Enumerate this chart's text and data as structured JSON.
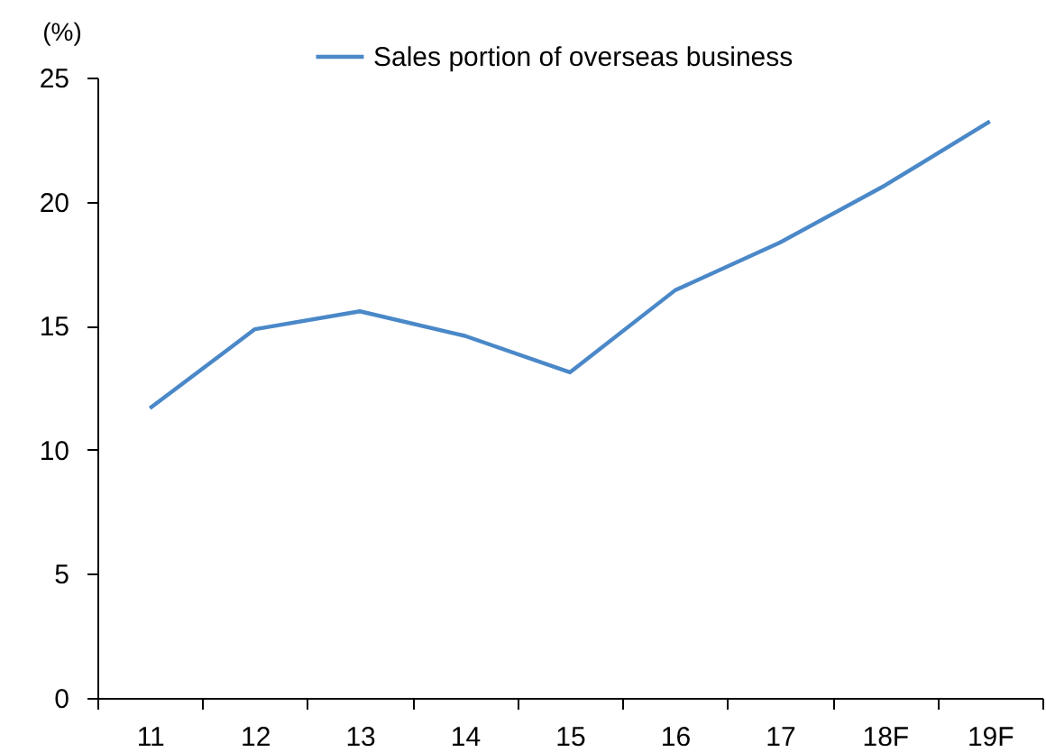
{
  "chart_data": {
    "type": "line",
    "ylabel": "(%)",
    "categories": [
      "11",
      "12",
      "13",
      "14",
      "15",
      "16",
      "17",
      "18F",
      "19F"
    ],
    "series": [
      {
        "name": "Sales portion of overseas business",
        "color": "#4a88c8",
        "values": [
          11.67,
          14.86,
          15.58,
          14.59,
          13.12,
          16.42,
          18.35,
          20.65,
          23.23
        ]
      }
    ],
    "ylim": [
      0,
      25
    ],
    "yticks": [
      0,
      5,
      10,
      15,
      20,
      25
    ],
    "grid": false,
    "legend": "top",
    "line_style": "solid",
    "marker": "none"
  }
}
